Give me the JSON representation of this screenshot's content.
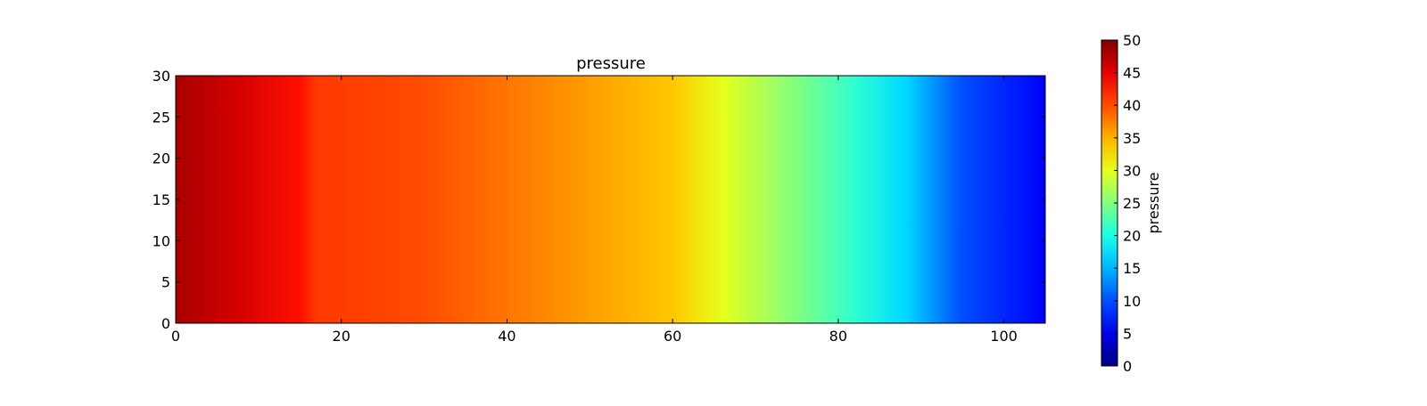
{
  "chart_data": {
    "type": "heatmap",
    "title": "pressure",
    "xlabel": "",
    "ylabel": "",
    "xlim": [
      0,
      105
    ],
    "ylim": [
      0,
      30
    ],
    "x_ticks": [
      0,
      20,
      40,
      60,
      80,
      100
    ],
    "y_ticks": [
      0,
      5,
      10,
      15,
      20,
      25,
      30
    ],
    "colormap": "jet",
    "grid": false,
    "variation": "pressure varies along x only; uniform along y",
    "pressure_profile": {
      "x": [
        0,
        7,
        15,
        17,
        30,
        45,
        60,
        66,
        75,
        82,
        88,
        95,
        105
      ],
      "value": [
        48,
        46,
        43,
        41,
        40,
        37,
        34,
        30,
        25,
        21,
        17,
        10,
        6
      ]
    },
    "colorbar": {
      "label": "pressure",
      "range": [
        0,
        50
      ],
      "ticks": [
        0,
        5,
        10,
        15,
        20,
        25,
        30,
        35,
        40,
        45,
        50
      ],
      "levels": 10
    }
  }
}
